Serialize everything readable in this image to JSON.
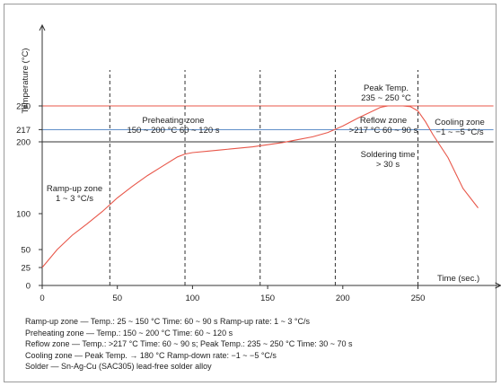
{
  "chart_data": {
    "type": "line",
    "ylabel": "Temperature (°C)",
    "xlabel": "Time (sec.)",
    "xlim": [
      0,
      305
    ],
    "ylim": [
      0,
      300
    ],
    "x_ticks": [
      0,
      50,
      100,
      150,
      200,
      250
    ],
    "y_ticks": [
      0,
      25,
      50,
      100,
      200,
      217,
      250
    ],
    "vertical_dividers": [
      45,
      95,
      145,
      195,
      250
    ],
    "reference_lines": [
      {
        "y": 250,
        "color": "#e8574a"
      },
      {
        "y": 217,
        "color": "#4a7fc0"
      },
      {
        "y": 200,
        "color": "#333333"
      }
    ],
    "series": [
      {
        "color": "#e8574a",
        "x": [
          0,
          10,
          20,
          30,
          40,
          50,
          60,
          70,
          80,
          90,
          95,
          100,
          110,
          120,
          130,
          140,
          150,
          160,
          170,
          180,
          190,
          200,
          210,
          220,
          225,
          230,
          235,
          240,
          245,
          250,
          255,
          260,
          270,
          280,
          290
        ],
        "y": [
          25,
          50,
          70,
          86,
          103,
          122,
          138,
          153,
          166,
          179,
          183,
          185,
          187,
          189,
          191,
          193,
          196,
          199,
          203,
          207,
          213,
          222,
          233,
          243,
          248,
          250,
          250,
          250,
          249,
          243,
          228,
          210,
          178,
          135,
          108
        ]
      }
    ],
    "annotations": [
      {
        "id": "ramp",
        "lines": [
          "Ramp-up zone",
          "1 ~ 3 °C/s"
        ]
      },
      {
        "id": "preheat",
        "lines": [
          "Preheating zone",
          "150 ~ 200 °C    60 ~ 120 s"
        ]
      },
      {
        "id": "peak",
        "lines": [
          "Peak Temp.",
          "235 ~ 250 °C"
        ]
      },
      {
        "id": "reflow",
        "lines": [
          "Reflow zone",
          ">217 °C   60 ~ 90 s"
        ]
      },
      {
        "id": "soldering",
        "lines": [
          "Soldering time",
          "> 30 s"
        ]
      },
      {
        "id": "cooling",
        "lines": [
          "Cooling zone",
          "−1 ~ −5 °C/s"
        ]
      }
    ]
  },
  "legend_lines": [
    "Ramp-up zone — Temp.: 25 ~ 150 °C  Time: 60 ~ 90 s  Ramp-up rate: 1 ~ 3 °C/s",
    "Preheating zone — Temp.: 150 ~ 200 °C  Time: 60 ~ 120 s",
    "Reflow zone — Temp.: >217 °C  Time: 60 ~ 90 s; Peak Temp.: 235 ~ 250 °C  Time: 30 ~ 70 s",
    "Cooling zone — Peak Temp. → 180 °C  Ramp-down rate: −1 ~ −5 °C/s",
    "Solder — Sn-Ag-Cu (SAC305) lead-free solder alloy"
  ]
}
